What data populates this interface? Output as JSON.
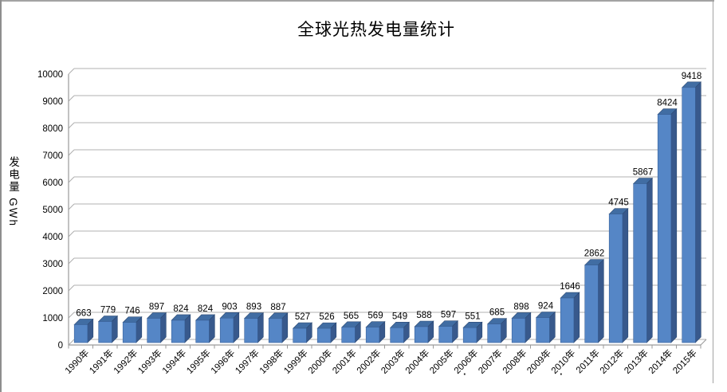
{
  "chart_data": {
    "type": "bar",
    "style": "3d-column",
    "title": "全球光热发电量统计",
    "ylabel": "发电量 GWh",
    "xlabel": "",
    "categories": [
      "1990年",
      "1991年",
      "1992年",
      "1993年",
      "1994年",
      "1995年",
      "1996年",
      "1997年",
      "1998年",
      "1999年",
      "2000年",
      "2001年",
      "2002年",
      "2003年",
      "2004年",
      "2005年",
      "2006年",
      "2007年",
      "2008年",
      "2009年",
      "2010年",
      "2011年",
      "2012年",
      "2013年",
      "2014年",
      "2015年"
    ],
    "values": [
      663,
      779,
      746,
      897,
      824,
      824,
      903,
      893,
      887,
      527,
      526,
      565,
      569,
      549,
      588,
      597,
      551,
      685,
      898,
      924,
      1646,
      2862,
      4745,
      5867,
      8424,
      9418
    ],
    "data_labels": [
      "663",
      "779",
      "746",
      "897",
      "824",
      "824",
      "903",
      "893",
      "887",
      "527",
      "526",
      "565",
      "569",
      "549",
      "588",
      "597",
      "551",
      "685",
      "898",
      "924",
      "1646",
      "2862",
      "4745",
      "5867",
      "8424",
      "9418"
    ],
    "ylim": [
      0,
      10000
    ],
    "y_ticks": [
      0,
      1000,
      2000,
      3000,
      4000,
      5000,
      6000,
      7000,
      8000,
      9000,
      10000
    ],
    "grid": true,
    "legend": "none",
    "colors": {
      "bar_front": "#5586c6",
      "bar_side": "#38598c",
      "bar_top": "#416da3",
      "bar_edge": "#2c4a73",
      "gridline": "#b0b0b0",
      "axis": "#9a9a9a",
      "text": "#000000"
    },
    "stray_dots": [
      {
        "glyph": "·"
      },
      {
        "glyph": "·"
      }
    ]
  }
}
